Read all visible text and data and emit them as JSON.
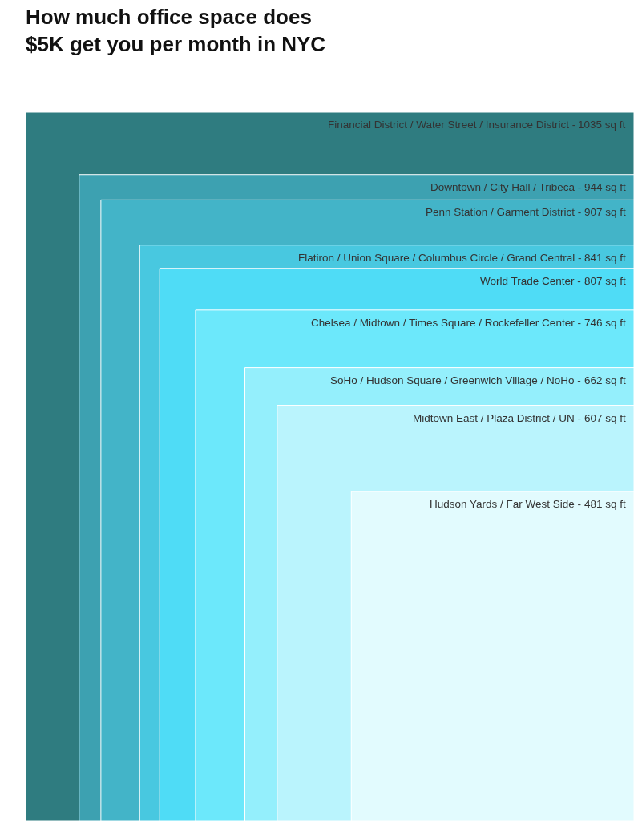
{
  "chart_data": {
    "type": "other",
    "title": "How much office space does\n$5K get you per month in NYC",
    "categories": [
      "Financial District / Water Street / Insurance District -",
      "Downtown / City Hall / Tribeca -",
      "Penn Station / Garment District -",
      "Flatiron / Union Square / Columbus Circle / Grand Central -",
      "World Trade Center -",
      "Chelsea / Midtown / Times Square / Rockefeller Center -",
      "SoHo / Hudson Square / Greenwich Village / NoHo -",
      "Midtown East / Plaza District / UN -",
      "Hudson Yards / Far West Side -"
    ],
    "values": [
      1035,
      944,
      907,
      841,
      807,
      746,
      662,
      607,
      481
    ],
    "value_labels": [
      "1035 sq ft",
      "944 sq ft",
      "907 sq ft",
      "841 sq ft",
      "807 sq ft",
      "746 sq ft",
      "662 sq ft",
      "607 sq ft",
      "481 sq ft"
    ],
    "colors": [
      "#2f7c80",
      "#3da1b1",
      "#43b4c8",
      "#48c8e0",
      "#4fdcf6",
      "#6ce8fb",
      "#94effc",
      "#baf4fd",
      "#e2fbfe"
    ]
  }
}
